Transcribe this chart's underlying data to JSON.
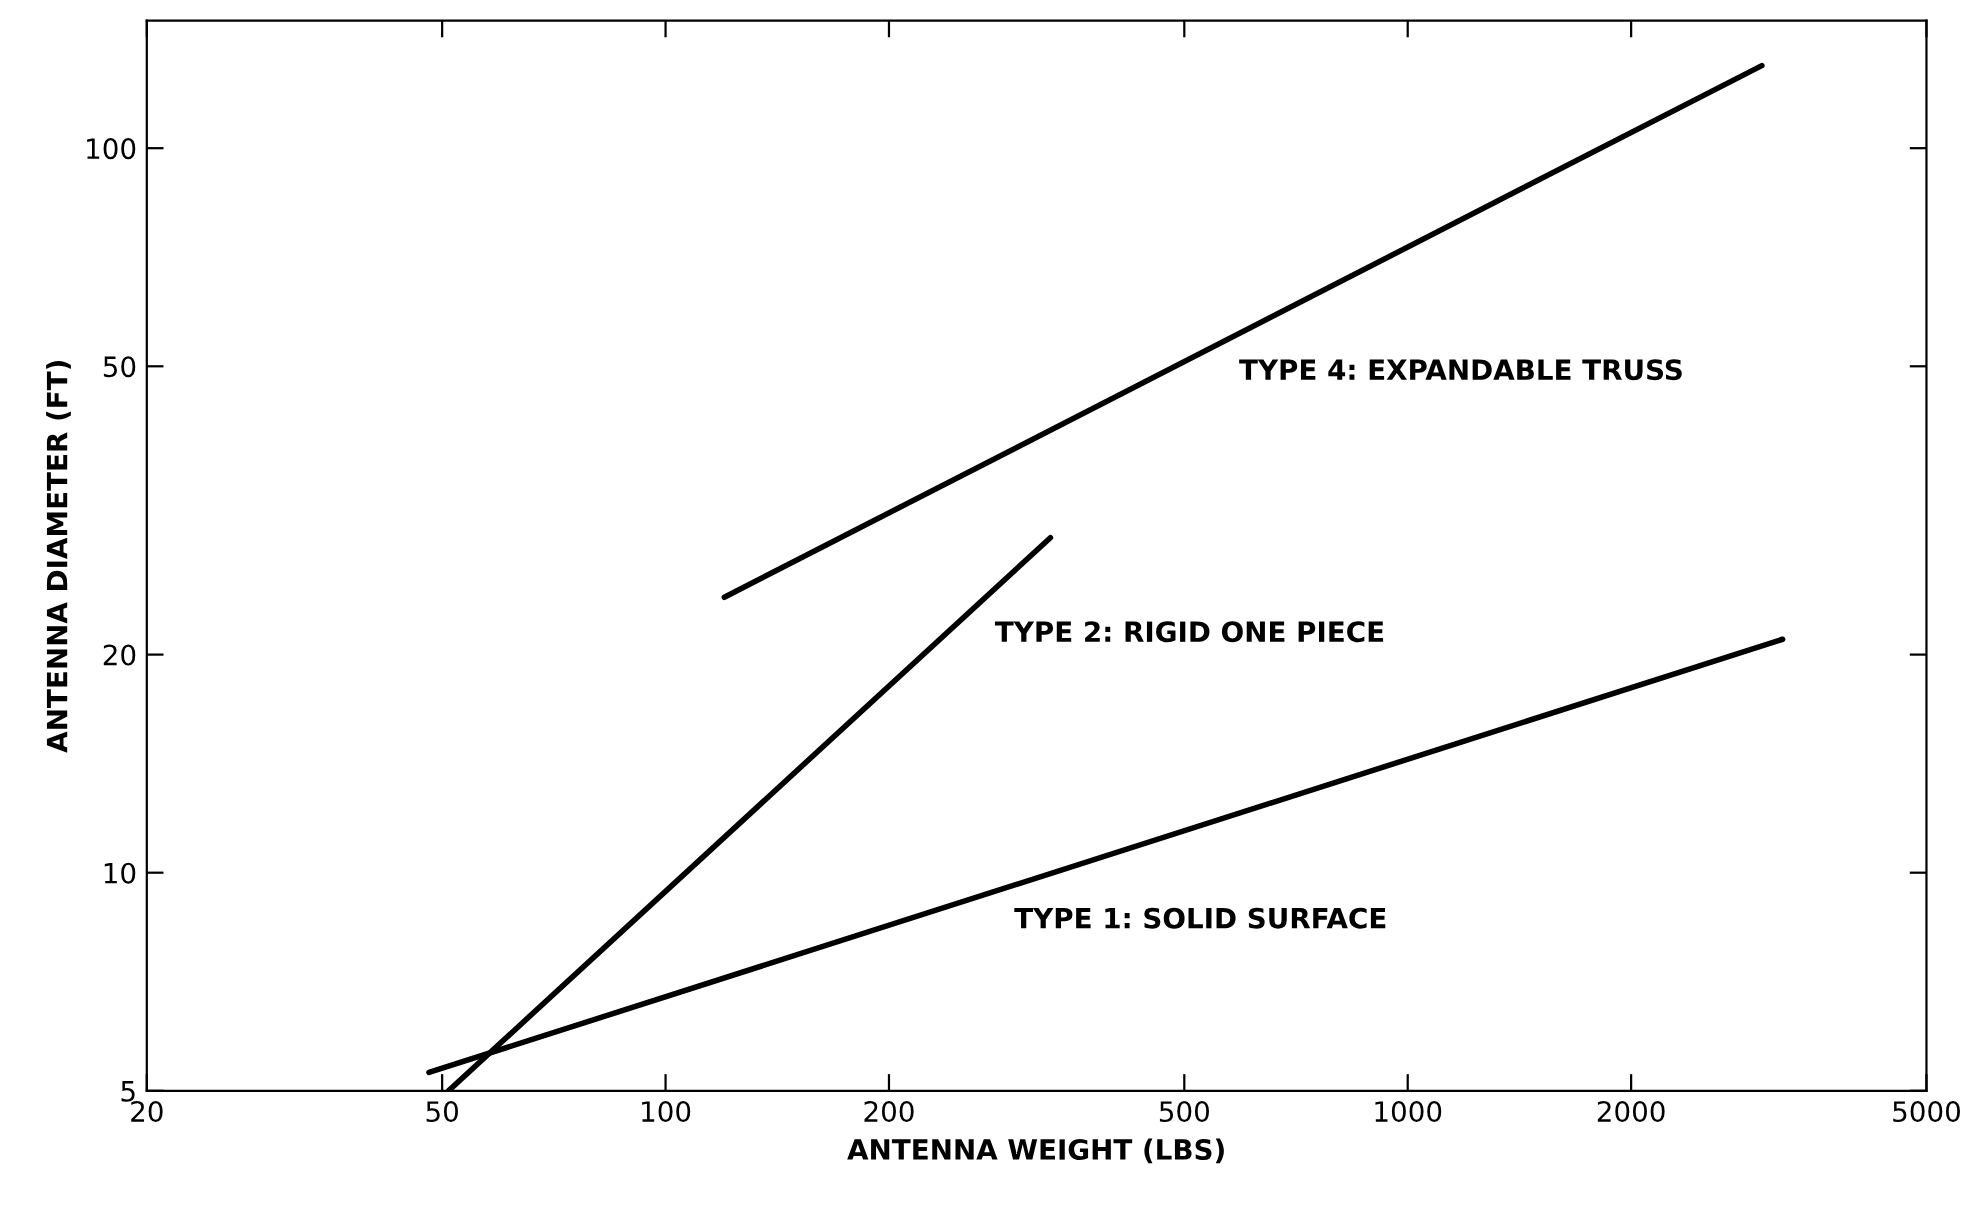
{
  "chart_data": {
    "type": "line",
    "xlabel": "ANTENNA WEIGHT (LBS)",
    "ylabel": "ANTENNA DIAMETER (FT)",
    "log": "xy",
    "xlim": [
      20,
      5000
    ],
    "xticks": [
      20,
      50,
      100,
      200,
      500,
      1000,
      2000,
      5000
    ],
    "ylim": [
      5,
      150
    ],
    "yticks": [
      5,
      10,
      20,
      50,
      100
    ],
    "marker": "none",
    "line_style": "solid",
    "series": [
      {
        "name": "TYPE 1: SOLID SURFACE",
        "color": "#000000",
        "x": [
          48,
          3200
        ],
        "values": [
          5.3,
          21
        ]
      },
      {
        "name": "TYPE 2: RIGID ONE PIECE",
        "color": "#000000",
        "x": [
          51,
          330
        ],
        "values": [
          5,
          29
        ]
      },
      {
        "name": "TYPE 4: EXPANDABLE TRUSS",
        "color": "#000000",
        "x": [
          120,
          3000
        ],
        "values": [
          24,
          130
        ]
      }
    ]
  }
}
